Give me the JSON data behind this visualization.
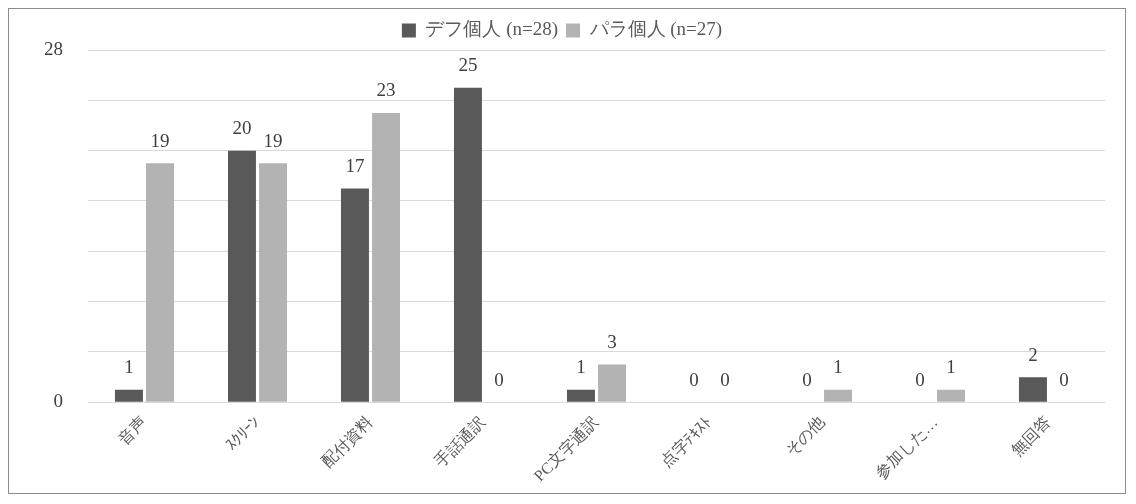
{
  "chart_data": {
    "type": "bar",
    "categories": [
      "音声",
      "ｽｸﾘｰﾝ",
      "配付資料",
      "手話通訳",
      "PC文字通訳",
      "点字ﾃｷｽﾄ",
      "その他",
      "参加した…",
      "無回答"
    ],
    "series": [
      {
        "name": "デフ個人 (n=28)",
        "color": "#595959",
        "values": [
          1,
          20,
          17,
          25,
          1,
          0,
          0,
          0,
          2
        ]
      },
      {
        "name": "パラ個人 (n=27)",
        "color": "#b3b3b3",
        "values": [
          19,
          19,
          23,
          0,
          3,
          0,
          1,
          1,
          0
        ]
      }
    ],
    "ylim": [
      0,
      28
    ],
    "yticks": [
      0,
      {
        "value": 4,
        "label": null
      },
      {
        "value": 8,
        "label": null
      },
      {
        "value": 12,
        "label": null
      },
      {
        "value": 16,
        "label": null
      },
      {
        "value": 20,
        "label": null
      },
      {
        "value": 24,
        "label": null
      },
      28
    ],
    "grid": "y",
    "legend": "top",
    "data_labels": true
  }
}
